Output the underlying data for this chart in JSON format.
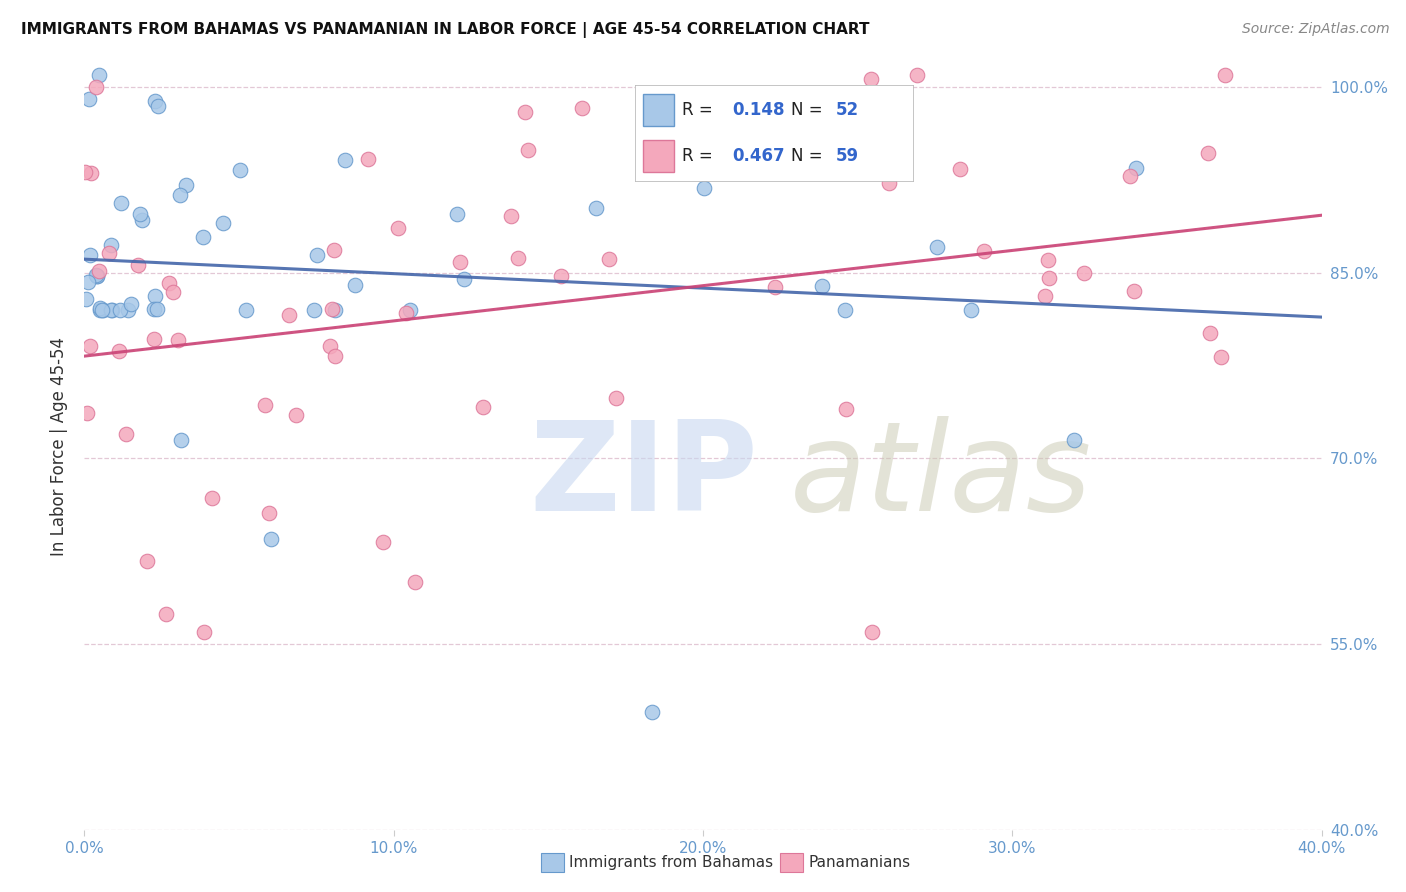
{
  "title": "IMMIGRANTS FROM BAHAMAS VS PANAMANIAN IN LABOR FORCE | AGE 45-54 CORRELATION CHART",
  "source": "Source: ZipAtlas.com",
  "xlim": [
    0.0,
    0.4
  ],
  "ylim": [
    0.4,
    1.02
  ],
  "ylabel": "In Labor Force | Age 45-54",
  "legend_label1": "Immigrants from Bahamas",
  "legend_label2": "Panamanians",
  "r1": "0.148",
  "n1": "52",
  "r2": "0.467",
  "n2": "59",
  "color1": "#a8c8e8",
  "color2": "#f4a8bc",
  "color1_edge": "#6699cc",
  "color2_edge": "#dd7799",
  "line1_color": "#4466aa",
  "line2_color": "#cc4477",
  "watermark_zip_color": "#c8d8f0",
  "watermark_atlas_color": "#c8c8b0",
  "grid_color": "#ddbbcc",
  "background_color": "#ffffff",
  "title_fontsize": 11,
  "source_fontsize": 10,
  "tick_fontsize": 11,
  "ylabel_fontsize": 12,
  "xticks": [
    0.0,
    0.1,
    0.2,
    0.3,
    0.4
  ],
  "yticks": [
    0.4,
    0.55,
    0.7,
    0.85,
    1.0
  ]
}
